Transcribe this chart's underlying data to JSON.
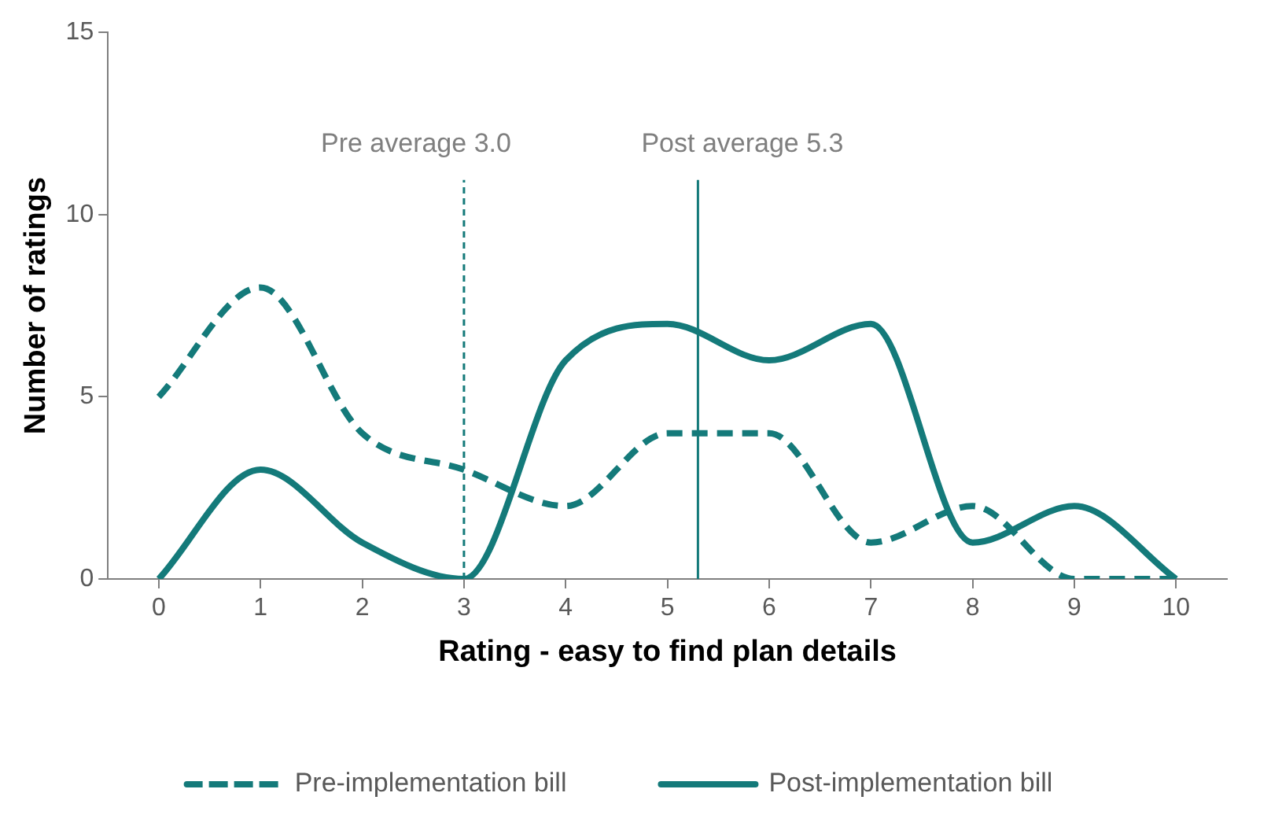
{
  "chart_data": {
    "type": "line",
    "xlabel": "Rating - easy to find plan details",
    "ylabel": "Number of ratings",
    "x": [
      0,
      1,
      2,
      3,
      4,
      5,
      6,
      7,
      8,
      9,
      10
    ],
    "series": [
      {
        "name": "Pre-implementation bill",
        "color": "#147a7a",
        "line_style": "dashed",
        "values": [
          5,
          8,
          4,
          3,
          2,
          4,
          4,
          1,
          2,
          0,
          0
        ]
      },
      {
        "name": "Post-implementation bill",
        "color": "#147a7a",
        "line_style": "solid",
        "values": [
          0,
          3,
          1,
          0,
          6,
          7,
          6,
          7,
          1,
          2,
          0
        ]
      }
    ],
    "xlim": [
      -0.5,
      10.5
    ],
    "xticks": [
      0,
      1,
      2,
      3,
      4,
      5,
      6,
      7,
      8,
      9,
      10
    ],
    "ylim": [
      0,
      15
    ],
    "yticks": [
      0,
      5,
      10,
      15
    ],
    "ref_lines": [
      {
        "axis": "x",
        "value": 3.0,
        "label": "Pre average 3.0",
        "line_style": "dashed",
        "color": "#147a7a"
      },
      {
        "axis": "x",
        "value": 5.3,
        "label": "Post average 5.3",
        "line_style": "solid",
        "color": "#147a7a"
      }
    ],
    "grid": false,
    "legend": "bottom",
    "marker": "none"
  }
}
